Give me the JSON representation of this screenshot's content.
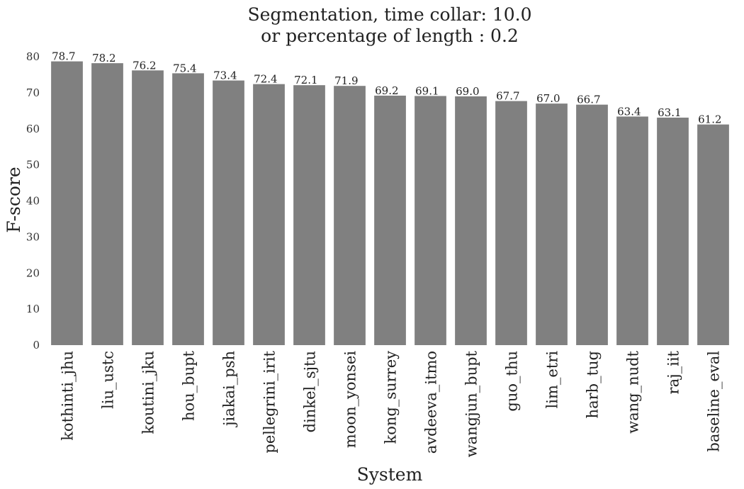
{
  "chart_data": {
    "type": "bar",
    "title": "Segmentation, time collar: 10.0",
    "subtitle": "or percentage of length : 0.2",
    "xlabel": "System",
    "ylabel": "F-score",
    "ylim": [
      0,
      80
    ],
    "yticks": [
      0,
      10,
      20,
      30,
      40,
      50,
      60,
      70,
      80
    ],
    "grid": false,
    "bar_color": "#808080",
    "categories": [
      "kothinti_jhu",
      "liu_ustc",
      "koutini_jku",
      "hou_bupt",
      "jiakai_psh",
      "pellegrini_irit",
      "dinkel_sjtu",
      "moon_yonsei",
      "kong_surrey",
      "avdeeva_itmo",
      "wangjun_bupt",
      "guo_thu",
      "lim_etri",
      "harb_tug",
      "wang_nudt",
      "raj_iit",
      "baseline_eval"
    ],
    "values": [
      78.7,
      78.2,
      76.2,
      75.4,
      73.4,
      72.4,
      72.1,
      71.9,
      69.2,
      69.1,
      69.0,
      67.7,
      67.0,
      66.7,
      63.4,
      63.1,
      61.2
    ],
    "value_labels": [
      "78.7",
      "78.2",
      "76.2",
      "75.4",
      "73.4",
      "72.4",
      "72.1",
      "71.9",
      "69.2",
      "69.1",
      "69.0",
      "67.7",
      "67.0",
      "66.7",
      "63.4",
      "63.1",
      "61.2"
    ]
  }
}
